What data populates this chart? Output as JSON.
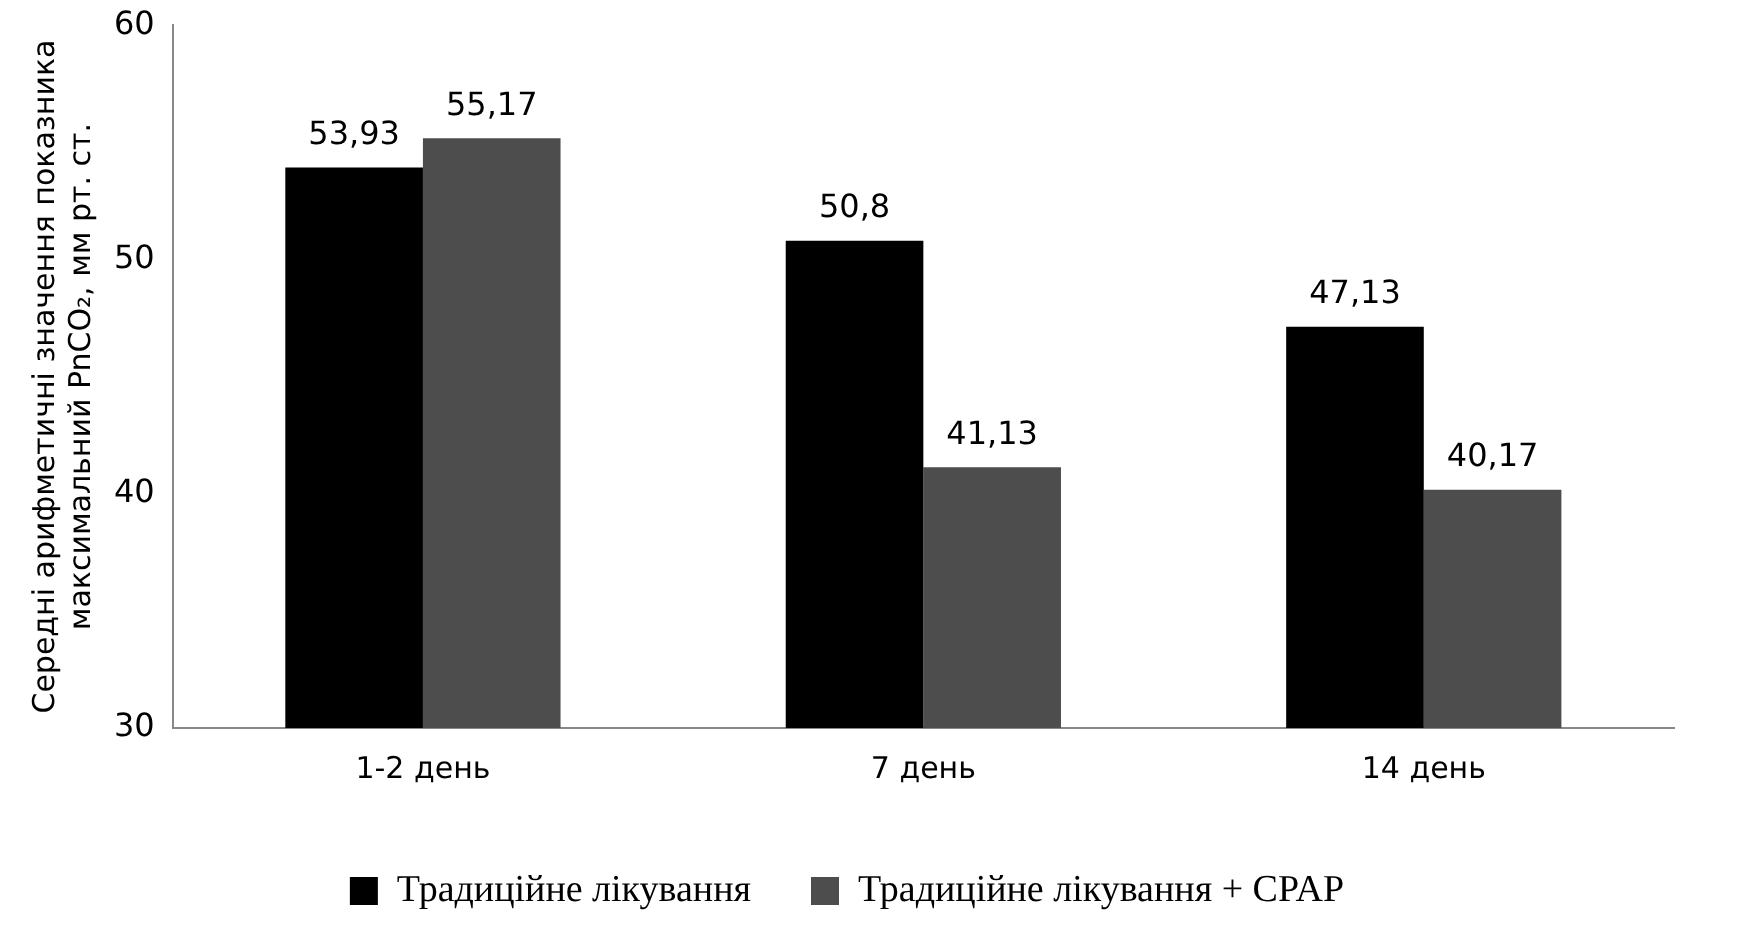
{
  "chart_data": {
    "type": "bar",
    "ylabel": "Середні арифметичні значення показника максимальний PnCO₂, мм рт. ст.",
    "categories": [
      "1-2 день",
      "7 день",
      "14 день"
    ],
    "series": [
      {
        "name": "Традиційне лікування",
        "color": "#000000",
        "values": [
          53.93,
          50.8,
          47.13
        ],
        "value_labels": [
          "53,93",
          "50,8",
          "47,13"
        ]
      },
      {
        "name": "Традиційне лікування + CPAP",
        "color": "#4d4d4d",
        "values": [
          55.17,
          41.13,
          40.17
        ],
        "value_labels": [
          "55,17",
          "41,13",
          "40,17"
        ]
      }
    ],
    "ylim": [
      30,
      60
    ],
    "yticks": [
      30,
      40,
      50,
      60
    ],
    "grid": false,
    "legend": "bottom"
  }
}
